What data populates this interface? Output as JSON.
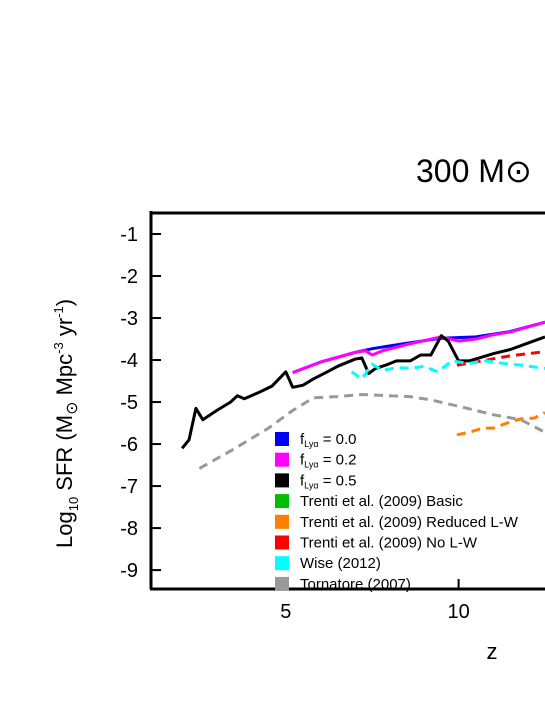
{
  "chart_data": {
    "type": "line",
    "title": "300 M⊙",
    "xlabel": "z",
    "ylabel_parts": {
      "log": "Log",
      "log_sub": "10",
      "main": " SFR (M",
      "sun": "⊙",
      "mpc": " Mpc",
      "mpc_exp": "-3",
      "yr": " yr",
      "yr_exp": "-1",
      "close": ")"
    },
    "xlim": [
      1.1,
      12.5
    ],
    "ylim": [
      -9.45,
      -0.5
    ],
    "xticks": [
      5,
      10
    ],
    "yticks": [
      -1,
      -2,
      -3,
      -4,
      -5,
      -6,
      -7,
      -8,
      -9
    ],
    "x_tick_labels": [
      "5",
      "10"
    ],
    "y_tick_labels": [
      "-1",
      "-2",
      "-3",
      "-4",
      "-5",
      "-6",
      "-7",
      "-8",
      "-9"
    ],
    "legend_position": "lower-middle",
    "series": [
      {
        "name_parts": [
          "f",
          "Lyα",
          " = 0.0"
        ],
        "color": "#0000ff",
        "dash": "solid",
        "x": [
          5.2,
          6.0,
          7.0,
          7.5,
          8.5,
          9.5,
          10.5,
          11.5,
          12.5
        ],
        "y": [
          -4.3,
          -4.05,
          -3.82,
          -3.73,
          -3.6,
          -3.48,
          -3.45,
          -3.32,
          -3.1
        ]
      },
      {
        "name_parts": [
          "f",
          "Lyα",
          " = 0.2"
        ],
        "color": "#ff00ff",
        "dash": "solid",
        "x": [
          5.2,
          6.0,
          7.0,
          7.3,
          7.5,
          7.8,
          8.5,
          9.5,
          10.0,
          10.5,
          11.0,
          11.5,
          12.5
        ],
        "y": [
          -4.3,
          -4.05,
          -3.82,
          -3.78,
          -3.88,
          -3.78,
          -3.63,
          -3.45,
          -3.55,
          -3.5,
          -3.4,
          -3.33,
          -3.1
        ]
      },
      {
        "name_parts": [
          "f",
          "Lyα",
          " = 0.5"
        ],
        "color": "#000000",
        "dash": "solid",
        "x": [
          2.0,
          2.2,
          2.4,
          2.6,
          3.0,
          3.4,
          3.6,
          3.8,
          4.2,
          4.6,
          5.0,
          5.2,
          5.5,
          5.8,
          6.2,
          6.5,
          7.0,
          7.2,
          7.4,
          7.6,
          7.9,
          8.2,
          8.6,
          8.9,
          9.2,
          9.5,
          9.7,
          10.0,
          10.3,
          10.6,
          11.0,
          11.5,
          12.0,
          12.5
        ],
        "y": [
          -6.1,
          -5.9,
          -5.15,
          -5.42,
          -5.2,
          -5.0,
          -4.85,
          -4.92,
          -4.78,
          -4.62,
          -4.28,
          -4.65,
          -4.6,
          -4.45,
          -4.28,
          -4.15,
          -3.98,
          -3.95,
          -4.32,
          -4.2,
          -4.12,
          -4.02,
          -4.02,
          -3.88,
          -3.88,
          -3.42,
          -3.55,
          -4.02,
          -4.02,
          -3.95,
          -3.85,
          -3.75,
          -3.6,
          -3.45
        ]
      },
      {
        "name": "Trenti et al. (2009) Basic",
        "color": "#00bf00",
        "dash": "dashed",
        "x": [],
        "y": []
      },
      {
        "name": "Trenti et al. (2009) Reduced L-W",
        "color": "#ff7f00",
        "dash": "dashed",
        "x": [
          9.95,
          10.3,
          10.7,
          11.0,
          11.4,
          11.8,
          12.2,
          12.5
        ],
        "y": [
          -5.78,
          -5.72,
          -5.62,
          -5.62,
          -5.5,
          -5.4,
          -5.38,
          -5.25
        ]
      },
      {
        "name": "Trenti et al. (2009) No L-W",
        "color": "#ff0000",
        "dash": "dashed",
        "x": [
          9.95,
          10.5,
          11.0,
          11.5,
          12.0,
          12.5
        ],
        "y": [
          -4.12,
          -4.05,
          -3.97,
          -3.9,
          -3.85,
          -3.8
        ]
      },
      {
        "name": "Wise (2012)",
        "color": "#00ffff",
        "dash": "dashed",
        "x": [
          6.9,
          7.2,
          7.5,
          7.8,
          8.2,
          8.6,
          9.0,
          9.4,
          9.8,
          10.3,
          10.8,
          11.3,
          11.8,
          12.5
        ],
        "y": [
          -4.28,
          -4.45,
          -4.1,
          -4.25,
          -4.18,
          -4.2,
          -4.15,
          -4.28,
          -4.02,
          -4.08,
          -4.02,
          -4.08,
          -4.12,
          -4.2
        ]
      },
      {
        "name": "Tornatore (2007)",
        "color": "#999999",
        "dash": "dashed",
        "x": [
          2.5,
          3.5,
          4.5,
          5.2,
          5.8,
          6.5,
          7.2,
          8.0,
          8.6,
          9.2,
          10.0,
          11.0,
          11.8,
          12.5
        ],
        "y": [
          -6.58,
          -6.12,
          -5.62,
          -5.2,
          -4.9,
          -4.87,
          -4.82,
          -4.85,
          -4.87,
          -4.95,
          -5.1,
          -5.3,
          -5.42,
          -5.72
        ]
      }
    ]
  }
}
